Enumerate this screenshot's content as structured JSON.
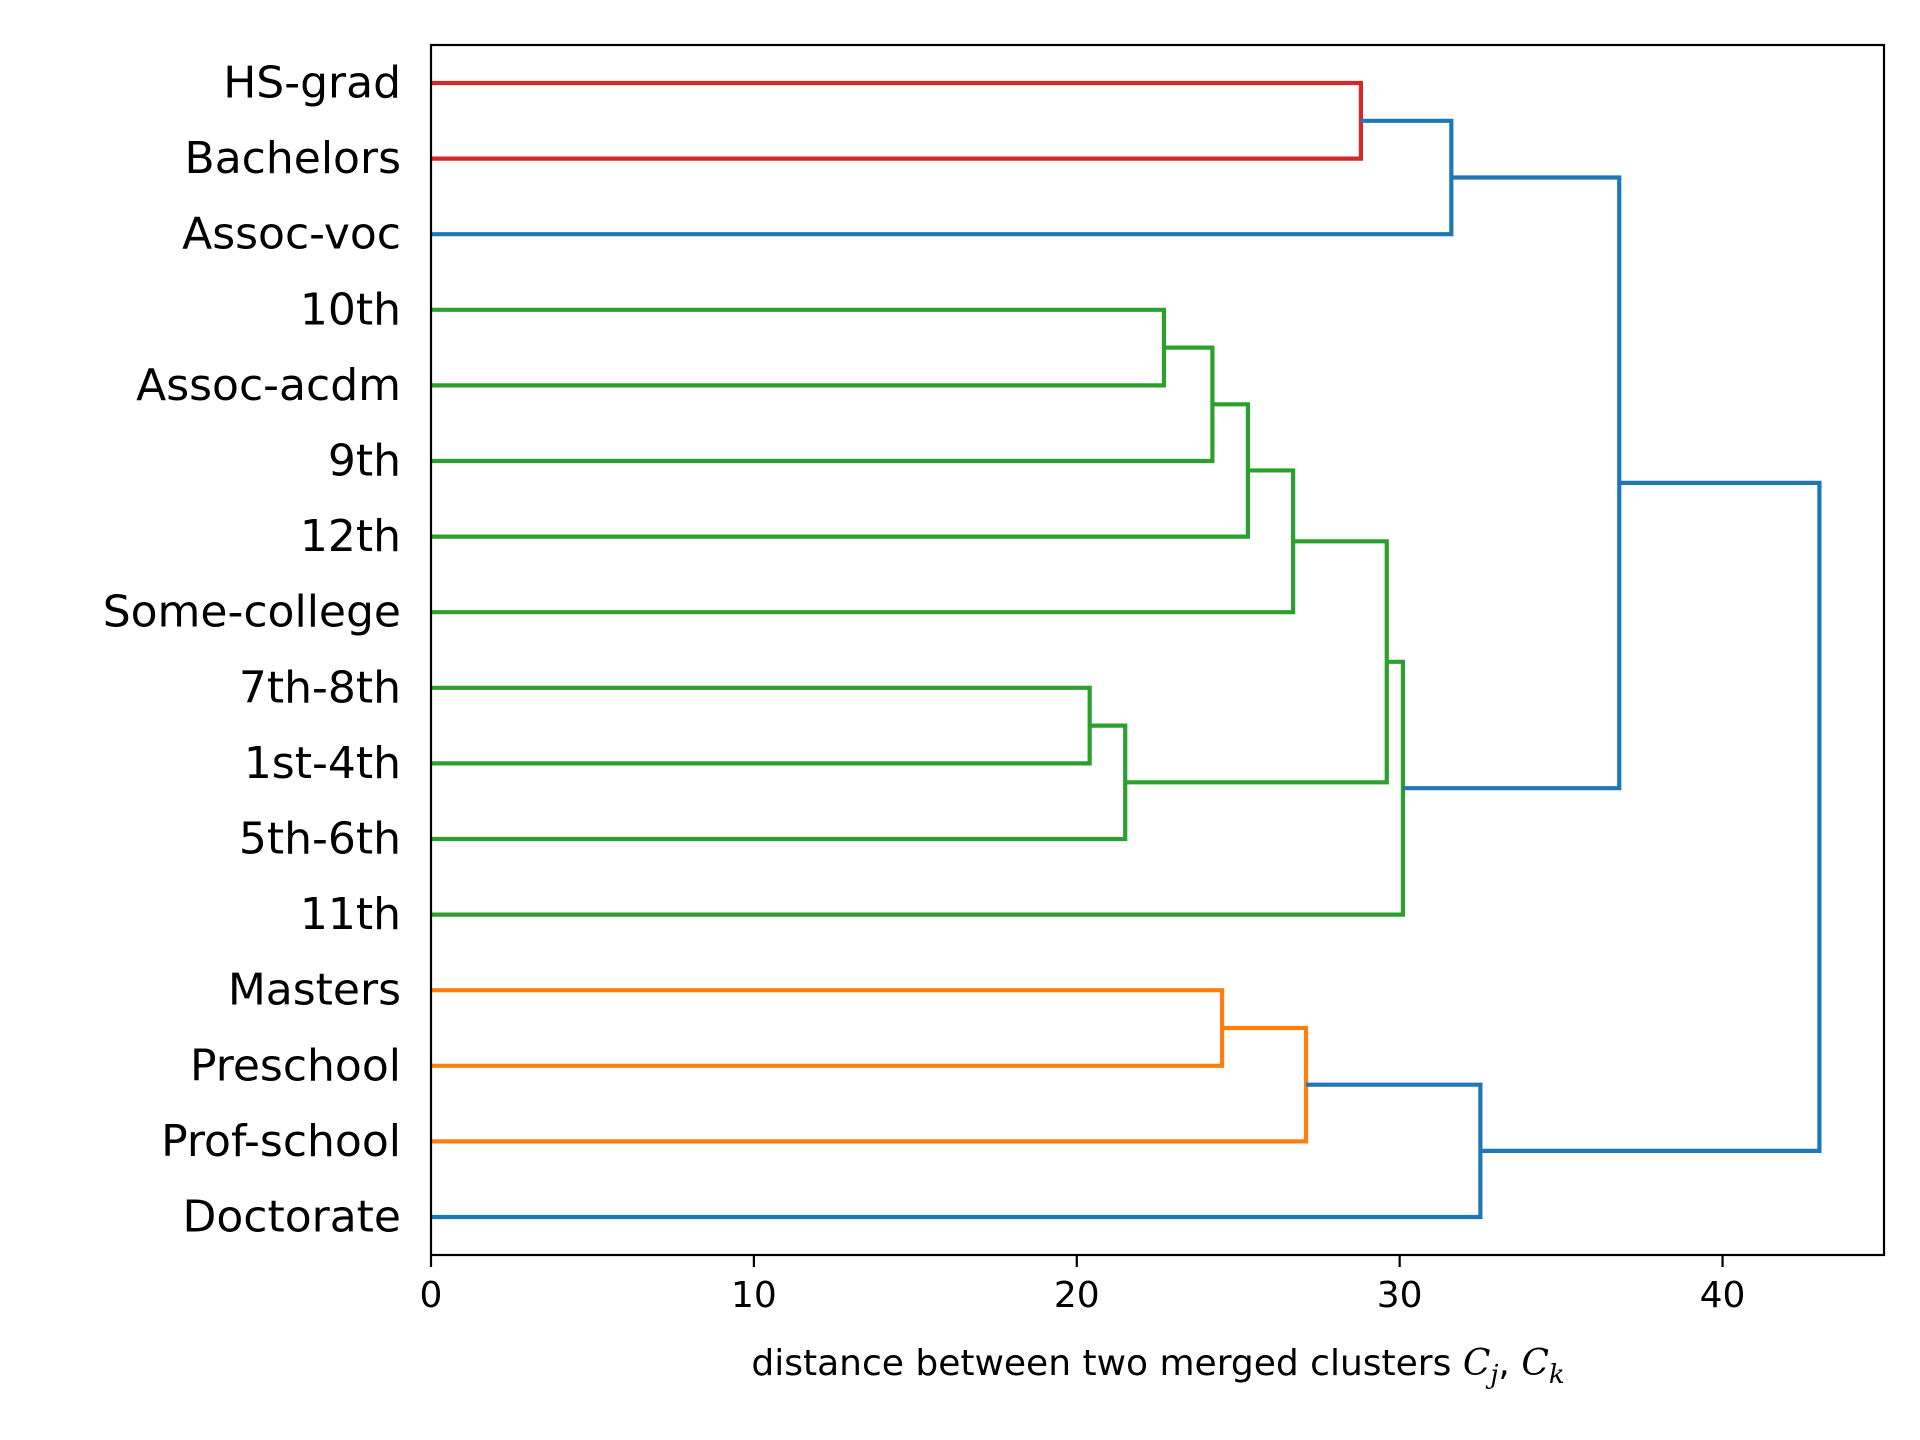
{
  "chart_data": {
    "type": "dendrogram",
    "orientation": "left",
    "xlabel_text": "distance between two merged clusters ",
    "xlabel_math": "C",
    "xlabel_sub_j": "j",
    "xlabel_sep": ", ",
    "xlabel_sub_k": "k",
    "xlim": [
      0,
      45
    ],
    "xticks": [
      0,
      10,
      20,
      30,
      40
    ],
    "xtick_labels": [
      "0",
      "10",
      "20",
      "30",
      "40"
    ],
    "leaves": [
      "HS-grad",
      "Bachelors",
      "Assoc-voc",
      "10th",
      "Assoc-acdm",
      "9th",
      "12th",
      "Some-college",
      "7th-8th",
      "1st-4th",
      "5th-6th",
      "11th",
      "Masters",
      "Preschool",
      "Prof-school",
      "Doctorate"
    ],
    "colors": {
      "red": "#d62728",
      "green": "#2ca02c",
      "orange": "#ff7f0e",
      "blue": "#1f77b4"
    },
    "merges": [
      {
        "id": "m1",
        "left": "HS-grad",
        "right": "Bachelors",
        "distance": 28.8,
        "color": "red"
      },
      {
        "id": "m2",
        "left": "m1",
        "right": "Assoc-voc",
        "distance": 31.6,
        "color": "blue"
      },
      {
        "id": "m3",
        "left": "10th",
        "right": "Assoc-acdm",
        "distance": 22.7,
        "color": "green"
      },
      {
        "id": "m4",
        "left": "m3",
        "right": "9th",
        "distance": 24.2,
        "color": "green"
      },
      {
        "id": "m5",
        "left": "m4",
        "right": "12th",
        "distance": 25.3,
        "color": "green"
      },
      {
        "id": "m6",
        "left": "m5",
        "right": "Some-college",
        "distance": 26.7,
        "color": "green"
      },
      {
        "id": "m7",
        "left": "7th-8th",
        "right": "1st-4th",
        "distance": 20.4,
        "color": "green"
      },
      {
        "id": "m8",
        "left": "m7",
        "right": "5th-6th",
        "distance": 21.5,
        "color": "green"
      },
      {
        "id": "m9",
        "left": "m6",
        "right": "m8",
        "distance": 29.6,
        "color": "green"
      },
      {
        "id": "m10",
        "left": "m9",
        "right": "11th",
        "distance": 30.1,
        "color": "green"
      },
      {
        "id": "m11",
        "left": "m2",
        "right": "m10",
        "distance": 36.8,
        "color": "blue"
      },
      {
        "id": "m12",
        "left": "Masters",
        "right": "Preschool",
        "distance": 24.5,
        "color": "orange"
      },
      {
        "id": "m13",
        "left": "m12",
        "right": "Prof-school",
        "distance": 27.1,
        "color": "orange"
      },
      {
        "id": "m14",
        "left": "m13",
        "right": "Doctorate",
        "distance": 32.5,
        "color": "blue"
      },
      {
        "id": "m15",
        "left": "m11",
        "right": "m14",
        "distance": 43.0,
        "color": "blue"
      }
    ]
  }
}
